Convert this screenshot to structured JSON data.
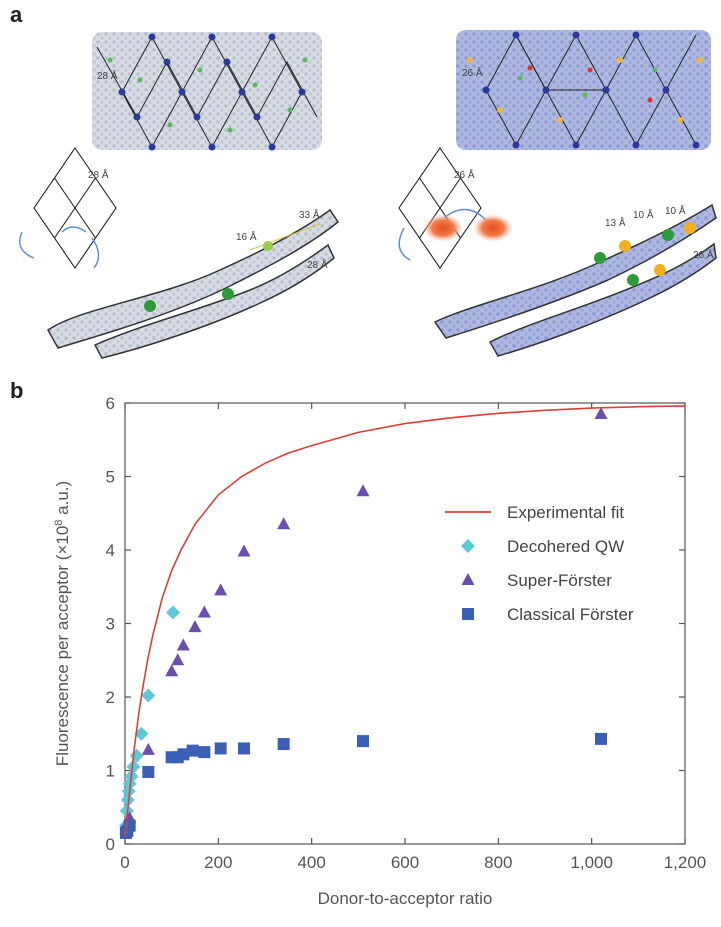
{
  "panel_a": {
    "label": "a",
    "left_distances": {
      "lattice_label": "28 Å",
      "rhombus_label": "28 Å",
      "strand_label_1": "16 Å",
      "strand_label_2": "33 Å",
      "strand_label_3": "28 Å"
    },
    "right_distances": {
      "lattice_label": "26 Å",
      "rhombus_label": "26 Å",
      "strand_label_1": "13 Å",
      "strand_label_2": "10 Å",
      "strand_label_3": "10 Å",
      "strand_label_4": "26 Å"
    }
  },
  "panel_b": {
    "label": "b"
  },
  "chart_data": {
    "type": "scatter",
    "xlabel": "Donor-to-acceptor ratio",
    "ylabel_main": "Fluorescence per acceptor (×10",
    "ylabel_sup": "8",
    "ylabel_end": " a.u.)",
    "xlim": [
      0,
      1200
    ],
    "ylim": [
      0,
      6
    ],
    "x_ticks": [
      0,
      200,
      400,
      600,
      800,
      1000,
      1200
    ],
    "x_tick_labels": [
      "0",
      "200",
      "400",
      "600",
      "800",
      "1,000",
      "1,200"
    ],
    "y_ticks": [
      0,
      1,
      2,
      3,
      4,
      5,
      6
    ],
    "y_tick_labels": [
      "0",
      "1",
      "2",
      "3",
      "4",
      "5",
      "6"
    ],
    "legend_position": "right",
    "series": [
      {
        "name": "Experimental fit",
        "kind": "line",
        "color": "#d9403a",
        "x": [
          0,
          10,
          20,
          30,
          40,
          50,
          60,
          80,
          100,
          120,
          150,
          200,
          250,
          300,
          350,
          400,
          500,
          600,
          700,
          800,
          900,
          1000,
          1100,
          1200
        ],
        "y": [
          0.1,
          0.72,
          1.3,
          1.8,
          2.2,
          2.55,
          2.85,
          3.35,
          3.72,
          4.0,
          4.35,
          4.75,
          5.0,
          5.18,
          5.32,
          5.42,
          5.6,
          5.72,
          5.8,
          5.86,
          5.9,
          5.93,
          5.95,
          5.96
        ]
      },
      {
        "name": "Decohered QW",
        "kind": "diamond",
        "color": "#5fc8d8",
        "x": [
          2,
          4,
          6,
          8,
          10,
          14,
          18,
          25,
          35,
          50,
          103
        ],
        "y": [
          0.25,
          0.45,
          0.6,
          0.72,
          0.82,
          0.92,
          1.05,
          1.2,
          1.5,
          2.02,
          3.15
        ]
      },
      {
        "name": "Super-Förster",
        "kind": "triangle",
        "color": "#6a4fb0",
        "x": [
          2,
          5,
          10,
          50,
          100,
          113,
          125,
          150,
          170,
          205,
          255,
          340,
          510,
          1020
        ],
        "y": [
          0.2,
          0.25,
          0.35,
          1.28,
          2.35,
          2.5,
          2.7,
          2.95,
          3.15,
          3.45,
          3.98,
          4.35,
          4.8,
          5.85
        ]
      },
      {
        "name": "Classical Förster",
        "kind": "square",
        "color": "#3a5fb5",
        "x": [
          2,
          5,
          10,
          50,
          100,
          113,
          125,
          145,
          170,
          205,
          255,
          340,
          510,
          1020
        ],
        "y": [
          0.15,
          0.18,
          0.25,
          0.98,
          1.18,
          1.18,
          1.22,
          1.27,
          1.25,
          1.3,
          1.3,
          1.36,
          1.4,
          1.43
        ]
      }
    ]
  }
}
